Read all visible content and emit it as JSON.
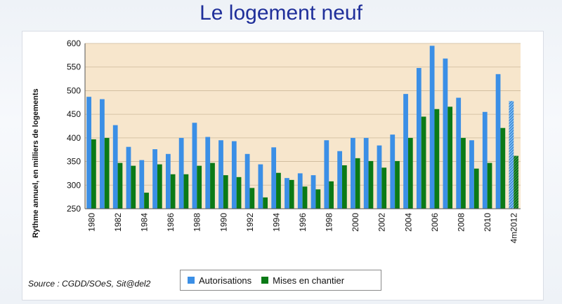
{
  "page": {
    "title": "Le logement neuf"
  },
  "source": "Source : CGDD/SOeS, Sit@del2",
  "legend": {
    "s1": "Autorisations",
    "s2": "Mises en chantier"
  },
  "colors": {
    "autorisations": "#3b8fe6",
    "mises": "#0b7a16",
    "plot_bg": "#f7e6cc"
  },
  "chart_data": {
    "type": "bar",
    "title": "",
    "xlabel": "",
    "ylabel": "Rythme annuel,  en milliers de logements",
    "ylim": [
      250,
      600
    ],
    "yticks": [
      250,
      300,
      350,
      400,
      450,
      500,
      550,
      600
    ],
    "xticks": [
      "1980",
      "1982",
      "1984",
      "1986",
      "1988",
      "1990",
      "1992",
      "1994",
      "1996",
      "1998",
      "2000",
      "2002",
      "2004",
      "2006",
      "2008",
      "2010",
      "4m2012"
    ],
    "categories": [
      "1980",
      "1981",
      "1982",
      "1983",
      "1984",
      "1985",
      "1986",
      "1987",
      "1988",
      "1989",
      "1990",
      "1991",
      "1992",
      "1993",
      "1994",
      "1995",
      "1996",
      "1997",
      "1998",
      "1999",
      "2000",
      "2001",
      "2002",
      "2003",
      "2004",
      "2005",
      "2006",
      "2007",
      "2008",
      "2009",
      "2010",
      "2011",
      "4m2012"
    ],
    "series": [
      {
        "name": "Autorisations",
        "values": [
          487,
          482,
          427,
          381,
          353,
          376,
          366,
          400,
          432,
          402,
          395,
          393,
          366,
          344,
          380,
          315,
          325,
          321,
          395,
          372,
          400,
          400,
          384,
          407,
          493,
          548,
          595,
          568,
          485,
          395,
          455,
          535,
          478
        ]
      },
      {
        "name": "Mises en chantier",
        "values": [
          397,
          400,
          347,
          341,
          284,
          344,
          323,
          323,
          341,
          347,
          321,
          317,
          294,
          274,
          326,
          311,
          297,
          291,
          308,
          342,
          357,
          351,
          337,
          351,
          400,
          445,
          461,
          466,
          400,
          335,
          347,
          421,
          362
        ]
      }
    ]
  }
}
